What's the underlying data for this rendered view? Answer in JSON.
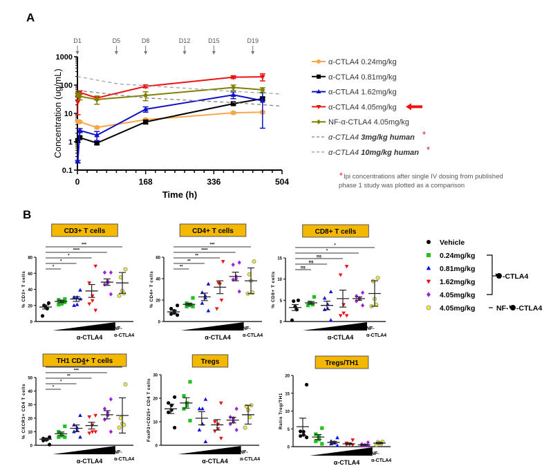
{
  "panel_labels": {
    "a": "A",
    "b": "B"
  },
  "chart_data": [
    {
      "type": "line",
      "panel": "A",
      "xlabel": "Time (h)",
      "ylabel": "Concentration (ug/mL)",
      "xlim": [
        0,
        504
      ],
      "ylim": [
        0.1,
        1000
      ],
      "yscale": "log",
      "xticks": [
        "0",
        "168",
        "336",
        "504"
      ],
      "yticks": [
        "0.1",
        "1",
        "10",
        "100",
        "1000"
      ],
      "dosing_days": [
        {
          "label": "D1",
          "time": 0
        },
        {
          "label": "D5",
          "time": 96
        },
        {
          "label": "D8",
          "time": 168
        },
        {
          "label": "D12",
          "time": 264
        },
        {
          "label": "D15",
          "time": 336
        },
        {
          "label": "D19",
          "time": 432
        }
      ],
      "series": [
        {
          "name": "α-CTLA4 0.24mg/kg",
          "color": "#F7A64A",
          "marker": "circle",
          "x": [
            1,
            6,
            48,
            168,
            384,
            456
          ],
          "y": [
            5.2,
            5,
            3.2,
            6,
            10.5,
            11
          ],
          "err": [
            0.4,
            0.4,
            0.3,
            0.6,
            1,
            1
          ]
        },
        {
          "name": "α-CTLA4 0.81mg/kg",
          "color": "#000000",
          "marker": "square",
          "x": [
            1,
            6,
            48,
            168,
            384,
            456
          ],
          "y": [
            1.1,
            1.4,
            0.9,
            5,
            22,
            33
          ],
          "err": [
            0.15,
            0.15,
            0.1,
            0.8,
            2,
            4
          ]
        },
        {
          "name": "α-CTLA4 1.62mg/kg",
          "color": "#1010C8",
          "marker": "triangle-up",
          "x": [
            1,
            6,
            48,
            168,
            384,
            456
          ],
          "y": [
            0.2,
            2.5,
            1.7,
            14,
            45,
            28
          ],
          "err": [
            0.02,
            0.4,
            0.6,
            3,
            12,
            25
          ]
        },
        {
          "name": "α-CTLA4 4.05mg/kg",
          "color": "#F01010",
          "marker": "triangle-down",
          "highlight_arrow": true,
          "x": [
            1,
            6,
            48,
            168,
            384,
            456
          ],
          "y": [
            25,
            55,
            35,
            90,
            190,
            195
          ],
          "err": [
            16,
            8,
            5,
            10,
            20,
            55
          ]
        },
        {
          "name": "NF-α-CTLA4 4.05mg/kg",
          "color": "#808000",
          "marker": "diamond",
          "x": [
            1,
            6,
            48,
            168,
            384,
            456
          ],
          "y": [
            45,
            40,
            31,
            43,
            82,
            68
          ],
          "err": [
            8,
            10,
            10,
            15,
            18,
            12
          ]
        },
        {
          "name_prefix": "α-CTLA4",
          "name_bold": "3mg/kg human",
          "asterisk": "*",
          "color": "#808080",
          "dashed": true,
          "x": [
            0,
            168,
            384,
            504
          ],
          "y": [
            65,
            35,
            24,
            18
          ]
        },
        {
          "name_prefix": "α-CTLA4",
          "name_bold": "10mg/kg human",
          "asterisk": "*",
          "color": "#A0A0A0",
          "dashed": true,
          "x": [
            0,
            100,
            384,
            504
          ],
          "y": [
            200,
            110,
            60,
            48
          ]
        }
      ],
      "footnote": {
        "asterisk": "*",
        "line1": "Ipi concentrations after single IV dosing from published",
        "line2": "phase 1 study was plotted as a comparison"
      }
    },
    {
      "type": "scatter",
      "panel": "B",
      "title": "CD3+ T cells",
      "ylabel": "% CD3+ T cells",
      "ylim": [
        0,
        80
      ],
      "yticks": [
        0,
        20,
        40,
        60,
        80
      ],
      "groups": [
        {
          "points": [
            23,
            20,
            18,
            16,
            7
          ],
          "mean": 18,
          "sem": 2.5
        },
        {
          "points": [
            28,
            27,
            25,
            22,
            21,
            24
          ],
          "mean": 25,
          "sem": 1.5
        },
        {
          "points": [
            39,
            30,
            30,
            21,
            20,
            28
          ],
          "mean": 28,
          "sem": 3
        },
        {
          "points": [
            69,
            48,
            32,
            26,
            22,
            14
          ],
          "mean": 38,
          "sem": 8
        },
        {
          "points": [
            61,
            61,
            50,
            48,
            46,
            34
          ],
          "mean": 49,
          "sem": 4
        },
        {
          "points": [
            65,
            55,
            38,
            35,
            32
          ],
          "mean": 48,
          "sem": 13
        }
      ],
      "significance": [
        {
          "to": 1,
          "label": "*"
        },
        {
          "to": 2,
          "label": "*"
        },
        {
          "to": 3,
          "label": "*"
        },
        {
          "to": 4,
          "label": "****"
        },
        {
          "to": 5,
          "label": "***"
        }
      ]
    },
    {
      "type": "scatter",
      "panel": "B",
      "title": "CD4+ T cells",
      "ylabel": "% CD4+ T cells",
      "ylim": [
        0,
        60
      ],
      "yticks": [
        0,
        20,
        40,
        60
      ],
      "groups": [
        {
          "points": [
            15,
            12,
            10,
            8,
            7,
            6
          ],
          "mean": 9,
          "sem": 1.5
        },
        {
          "points": [
            22,
            17,
            16,
            15,
            14,
            14
          ],
          "mean": 16,
          "sem": 1
        },
        {
          "points": [
            35,
            27,
            24,
            22,
            17,
            10
          ],
          "mean": 23,
          "sem": 3.5
        },
        {
          "points": [
            56,
            36,
            35,
            20,
            12
          ],
          "mean": 32,
          "sem": 6
        },
        {
          "points": [
            55,
            53,
            42,
            40,
            39,
            28
          ],
          "mean": 42,
          "sem": 4
        },
        {
          "points": [
            56,
            44,
            38,
            27,
            26
          ],
          "mean": 38,
          "sem": 12
        }
      ],
      "significance": [
        {
          "to": 1,
          "label": "**"
        },
        {
          "to": 2,
          "label": "**"
        },
        {
          "to": 3,
          "label": "**"
        },
        {
          "to": 4,
          "label": "****"
        },
        {
          "to": 5,
          "label": "***"
        }
      ]
    },
    {
      "type": "scatter",
      "panel": "B",
      "title": "CD8+ T cells",
      "ylabel": "% CD8+ T cells",
      "ylim": [
        0,
        15
      ],
      "yticks": [
        0,
        5,
        10,
        15
      ],
      "groups": [
        {
          "points": [
            5,
            4.8,
            3.5,
            2.8,
            0.3
          ],
          "mean": 3.3,
          "sem": 0.7
        },
        {
          "points": [
            5.8,
            4.5,
            4.3,
            4,
            3.8
          ],
          "mean": 4.4,
          "sem": 0.3
        },
        {
          "points": [
            7,
            5.5,
            4,
            3,
            2.8,
            0.3
          ],
          "mean": 3.8,
          "sem": 1
        },
        {
          "points": [
            13,
            11,
            4,
            2,
            1.4,
            1.4
          ],
          "mean": 5.4,
          "sem": 2
        },
        {
          "points": [
            6.8,
            6,
            5.5,
            5.3,
            4.8,
            3.8
          ],
          "mean": 5.4,
          "sem": 0.4
        },
        {
          "points": [
            10.3,
            9.5,
            5.3,
            4,
            3.6
          ],
          "mean": 6.6,
          "sem": 3
        }
      ],
      "significance": [
        {
          "to": 1,
          "label": "ns"
        },
        {
          "to": 2,
          "label": "ns"
        },
        {
          "to": 3,
          "label": "ns"
        },
        {
          "to": 4,
          "label": "*"
        },
        {
          "to": 5,
          "label": "*"
        }
      ]
    },
    {
      "type": "scatter",
      "panel": "B",
      "title": "TH1 CD4+ T cells",
      "ylabel": "% CXCR3+ CD4 T cells",
      "ylim": [
        0,
        50
      ],
      "yticks": [
        0,
        10,
        20,
        30,
        40,
        50
      ],
      "groups": [
        {
          "points": [
            6,
            5,
            4.5,
            4,
            3.5,
            0.5
          ],
          "mean": 4.5,
          "sem": 0.8
        },
        {
          "points": [
            14,
            10,
            8,
            7,
            6,
            6
          ],
          "mean": 8.5,
          "sem": 1.3
        },
        {
          "points": [
            22,
            15,
            13,
            11,
            10,
            6
          ],
          "mean": 12.5,
          "sem": 2.5
        },
        {
          "points": [
            22,
            21,
            15,
            10,
            9,
            10
          ],
          "mean": 14.5,
          "sem": 2.5
        },
        {
          "points": [
            34,
            27,
            24,
            22,
            19,
            10
          ],
          "mean": 22.5,
          "sem": 3
        },
        {
          "points": [
            45,
            20,
            16,
            15,
            13
          ],
          "mean": 22,
          "sem": 13
        }
      ],
      "significance": [
        {
          "to": 1,
          "label": "*"
        },
        {
          "to": 2,
          "label": "*"
        },
        {
          "to": 3,
          "label": "**"
        },
        {
          "to": 4,
          "label": "***"
        },
        {
          "to": 5,
          "label": "**"
        }
      ]
    },
    {
      "type": "scatter",
      "panel": "B",
      "title": "Tregs",
      "ylabel": "FoxP3+CD25+ CD4 T cells",
      "ylim": [
        0,
        30
      ],
      "yticks": [
        0,
        10,
        20,
        30
      ],
      "groups": [
        {
          "points": [
            20.5,
            18,
            17,
            15,
            14,
            7.5
          ],
          "mean": 15.5,
          "sem": 2
        },
        {
          "points": [
            27,
            21,
            18,
            17,
            15.5,
            10.5
          ],
          "mean": 18,
          "sem": 2.2
        },
        {
          "points": [
            19.5,
            15.5,
            15.5,
            9,
            6.5,
            1.5
          ],
          "mean": 11.5,
          "sem": 2.8
        },
        {
          "points": [
            18,
            10,
            9,
            7,
            6,
            3
          ],
          "mean": 8.7,
          "sem": 2.2
        },
        {
          "points": [
            15.5,
            12,
            11.5,
            10,
            9,
            6.5
          ],
          "mean": 10.7,
          "sem": 1.2
        },
        {
          "points": [
            17,
            16.5,
            15,
            12,
            7.5
          ],
          "mean": 13,
          "sem": 4
        }
      ],
      "significance": []
    },
    {
      "type": "scatter",
      "panel": "B",
      "title": "Tregs/TH1",
      "ylabel": "Ratio Treg/TH1",
      "ylim": [
        0,
        20
      ],
      "yticks": [
        0,
        5,
        10,
        15,
        20
      ],
      "groups": [
        {
          "points": [
            17.4,
            4.3,
            4.2,
            3.3,
            3,
            2.6
          ],
          "mean": 5.6,
          "sem": 2.4
        },
        {
          "points": [
            5.2,
            3.5,
            2.8,
            2,
            1.5,
            0.8
          ],
          "mean": 2.7,
          "sem": 0.7
        },
        {
          "points": [
            2.5,
            1.5,
            1.2,
            1,
            0.8,
            0.3
          ],
          "mean": 1.2,
          "sem": 0.3
        },
        {
          "points": [
            1.9,
            1,
            0.8,
            0.7,
            0.6,
            0.5
          ],
          "mean": 0.8,
          "sem": 0.2
        },
        {
          "points": [
            1.2,
            0.7,
            0.5,
            0.4,
            0.3,
            0.3
          ],
          "mean": 0.5,
          "sem": 0.15
        },
        {
          "points": [
            1.4,
            1.3,
            1,
            0.8,
            0.5
          ],
          "mean": 1,
          "sem": 0.2
        }
      ],
      "significance": []
    }
  ],
  "panel_b_legend": {
    "items": [
      {
        "label": "Vehicle",
        "color": "#000000",
        "marker": "circle"
      },
      {
        "label": "0.24mg/kg",
        "color": "#22C022",
        "marker": "square"
      },
      {
        "label": "0.81mg/kg",
        "color": "#1010E0",
        "marker": "triangle-up"
      },
      {
        "label": "1.62mg/kg",
        "color": "#F01010",
        "marker": "triangle-down"
      },
      {
        "label": "4.05mg/kg",
        "color": "#A020E0",
        "marker": "diamond"
      },
      {
        "label": "4.05mg/kg",
        "color": "#F0F020",
        "marker": "circle-outline"
      }
    ],
    "bracket_label": "-CTLA4",
    "nf_label_prefix": "NF-",
    "nf_label_suffix": "-CTLA4",
    "icon": "antibody-icon"
  },
  "x_group_labels": {
    "wedge_label": "α-CTLA4",
    "nf_line1": "NF-",
    "nf_line2": "α-CTLA4"
  },
  "colors": {
    "title_box": "#F5B800",
    "arrow": "#F01010"
  }
}
